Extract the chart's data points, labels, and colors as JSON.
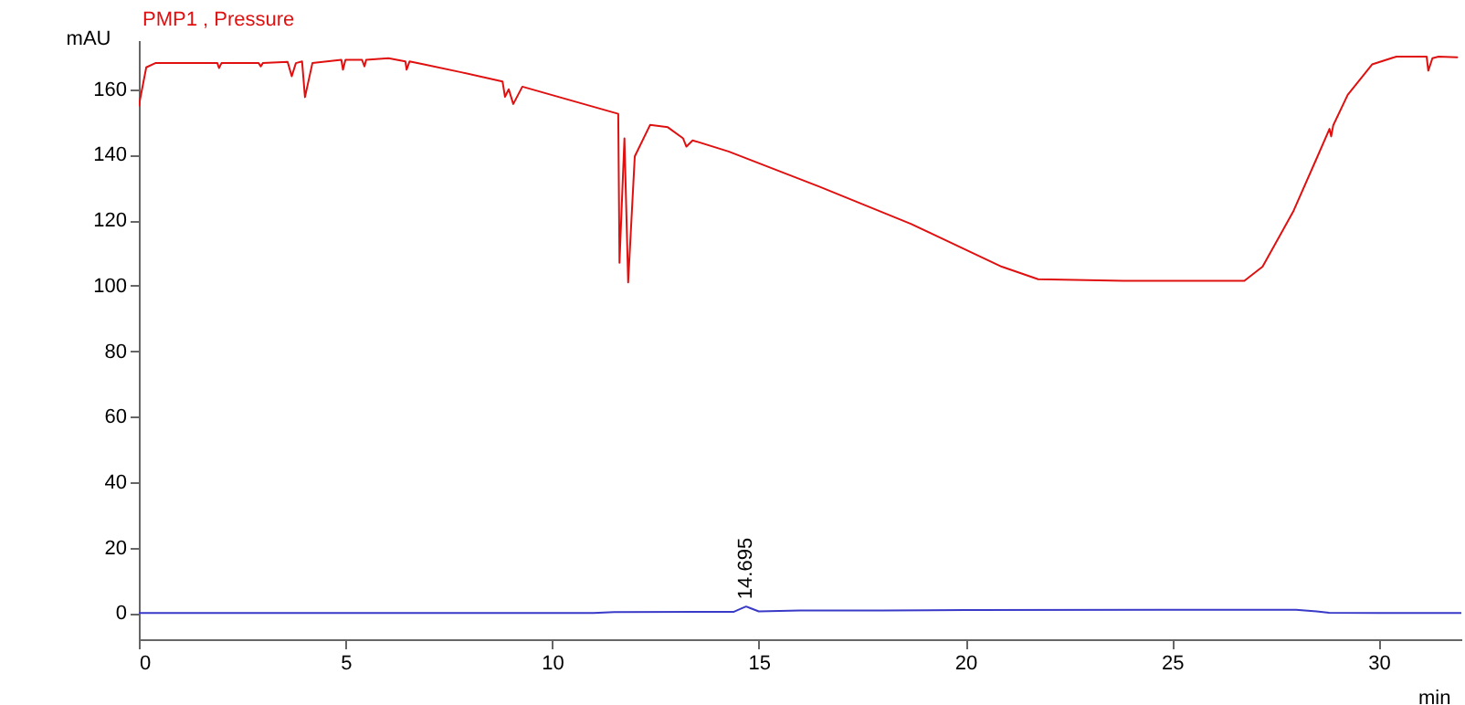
{
  "chart_data": {
    "type": "line",
    "xlabel": "min",
    "ylabel": "mAU",
    "xlim": [
      0,
      32
    ],
    "ylim": [
      -8,
      175
    ],
    "xticks": [
      0,
      5,
      10,
      15,
      20,
      25,
      30
    ],
    "yticks": [
      0,
      20,
      40,
      60,
      80,
      100,
      120,
      140,
      160
    ],
    "grid": false,
    "legend": false,
    "annotations": [
      {
        "text": "14.695",
        "x": 14.695,
        "y": 2
      }
    ],
    "series": [
      {
        "name": "PMP1 , Pressure",
        "color": "#e01010",
        "x": [
          0,
          0.18,
          0.4,
          1.9,
          1.94,
          2,
          2.9,
          2.95,
          3,
          3.6,
          3.7,
          3.8,
          3.95,
          4.02,
          4.2,
          4.9,
          4.94,
          5,
          5.4,
          5.46,
          5.5,
          6.04,
          6.45,
          6.48,
          6.55,
          6.9,
          7.8,
          8.8,
          8.86,
          8.95,
          9.06,
          9.28,
          11.6,
          11.63,
          11.75,
          11.84,
          12,
          12.37,
          12.8,
          13.17,
          13.25,
          13.4,
          14.27,
          16.48,
          18.68,
          20.88,
          21.76,
          23.82,
          26.75,
          27.19,
          27.93,
          28.52,
          28.81,
          28.85,
          28.9,
          29.25,
          29.84,
          30.43,
          31.16,
          31.2,
          31.3,
          31.45,
          31.9
        ],
        "values": [
          155,
          166.7,
          168,
          168,
          166.5,
          168,
          168,
          167,
          168,
          168.4,
          164,
          168,
          168.5,
          157.6,
          168,
          169,
          166,
          169,
          169,
          167,
          169,
          169.5,
          168.5,
          166,
          168.5,
          167.6,
          165.2,
          162.4,
          157.7,
          160,
          155.5,
          160.8,
          152.5,
          107,
          145,
          101,
          139.5,
          149.1,
          148.4,
          145,
          142.5,
          144.4,
          141,
          130.2,
          118.9,
          105.8,
          102,
          101.5,
          101.5,
          105.8,
          122.6,
          139.5,
          147.9,
          145.6,
          149,
          158.3,
          167.6,
          170,
          170,
          165.7,
          169.5,
          170,
          169.8
        ]
      },
      {
        "color": "#3a3ac8",
        "x": [
          0,
          6,
          11,
          11.5,
          14.4,
          14.6,
          14.695,
          14.8,
          15,
          16,
          18,
          20,
          25,
          28,
          28.5,
          28.8,
          30,
          32
        ],
        "values": [
          0,
          0,
          0,
          0.3,
          0.4,
          1.5,
          2,
          1.5,
          0.5,
          0.8,
          0.8,
          0.9,
          1,
          1,
          0.5,
          0.1,
          0,
          0
        ]
      }
    ]
  }
}
